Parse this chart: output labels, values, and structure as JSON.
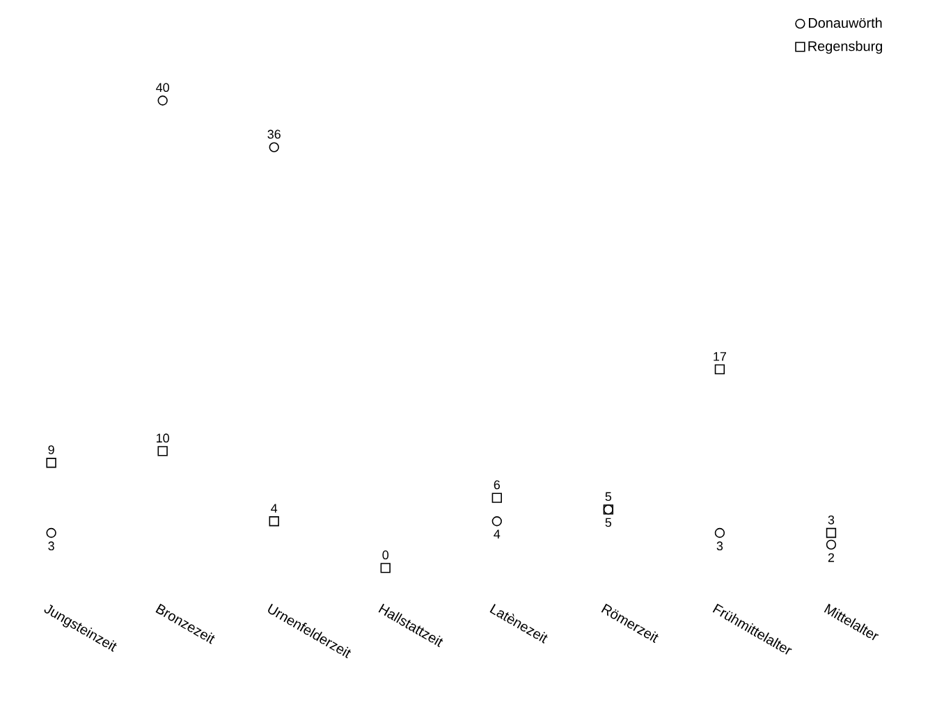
{
  "chart_data": {
    "type": "scatter",
    "categories": [
      "Jungsteinzeit",
      "Bronzezeit",
      "Urnenfelderzeit",
      "Hallstattzeit",
      "Latènezeit",
      "Römerzeit",
      "Frühmittelalter",
      "Mittelalter"
    ],
    "series": [
      {
        "name": "Donauwörth",
        "color": "#000000",
        "marker": "circle",
        "values": [
          3,
          40,
          36,
          null,
          4,
          5,
          3,
          2
        ]
      },
      {
        "name": "Regensburg",
        "color": "#000000",
        "marker": "square",
        "values": [
          9,
          10,
          4,
          0,
          6,
          5,
          17,
          3
        ]
      }
    ],
    "data_labels": true,
    "legend": "top right",
    "grid": false
  }
}
